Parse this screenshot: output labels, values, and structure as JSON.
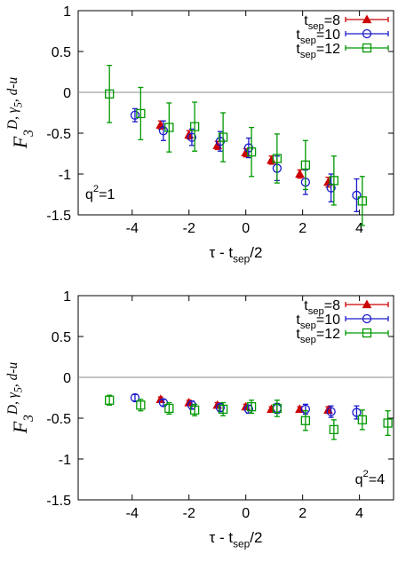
{
  "chart_data": [
    {
      "type": "scatter",
      "xlabel": [
        {
          "text": "τ - t"
        },
        {
          "sub": "sep"
        },
        {
          "text": "/2"
        }
      ],
      "ylabel": [
        {
          "text": "F"
        },
        {
          "sub": "3"
        },
        {
          "sup": "D, γ"
        },
        {
          "supsub": "5"
        },
        {
          "sup": ", d-u"
        }
      ],
      "xlim": [
        -5.9,
        5.2
      ],
      "ylim": [
        -1.5,
        1
      ],
      "xticks": [
        -4,
        -2,
        0,
        2,
        4
      ],
      "yticks": [
        -1.5,
        -1,
        -0.5,
        0,
        0.5,
        1
      ],
      "hline": 0,
      "legend": "upper right",
      "annotation": [
        {
          "text": "q"
        },
        {
          "sup": "2"
        },
        {
          "text": "=1"
        }
      ],
      "annotation_position": "lower left",
      "series": [
        {
          "name": [
            {
              "text": "t"
            },
            {
              "sub": "sep"
            },
            {
              "text": "=8"
            }
          ],
          "color": "#cc0000",
          "marker": "triangle",
          "x": [
            -3.0,
            -2.0,
            -1.0,
            0.0,
            0.9,
            1.9,
            2.9
          ],
          "values": [
            -0.4,
            -0.52,
            -0.65,
            -0.74,
            -0.83,
            -1.0,
            -1.1
          ],
          "errors": [
            0.05,
            0.05,
            0.05,
            0.05,
            0.05,
            0.05,
            0.06
          ]
        },
        {
          "name": [
            {
              "text": "t"
            },
            {
              "sub": "sep"
            },
            {
              "text": "=10"
            }
          ],
          "color": "#1a1acc",
          "marker": "circle",
          "x": [
            -3.9,
            -2.9,
            -1.9,
            -0.9,
            0.1,
            1.1,
            2.1,
            3.0,
            3.9
          ],
          "values": [
            -0.28,
            -0.47,
            -0.55,
            -0.6,
            -0.68,
            -0.93,
            -1.1,
            -1.17,
            -1.26
          ],
          "errors": [
            0.08,
            0.12,
            0.1,
            0.12,
            0.12,
            0.15,
            0.15,
            0.17,
            0.2
          ]
        },
        {
          "name": [
            {
              "text": "t"
            },
            {
              "sub": "sep"
            },
            {
              "text": "=12"
            }
          ],
          "color": "#009900",
          "marker": "square",
          "x": [
            -4.8,
            -3.7,
            -2.7,
            -1.8,
            -0.8,
            0.2,
            1.1,
            2.1,
            3.1,
            4.1
          ],
          "values": [
            -0.02,
            -0.26,
            -0.43,
            -0.42,
            -0.55,
            -0.73,
            -0.81,
            -0.89,
            -1.08,
            -1.33
          ],
          "errors": [
            0.35,
            0.32,
            0.3,
            0.3,
            0.3,
            0.3,
            0.3,
            0.3,
            0.3,
            0.3
          ]
        }
      ]
    },
    {
      "type": "scatter",
      "xlabel": [
        {
          "text": "τ - t"
        },
        {
          "sub": "sep"
        },
        {
          "text": "/2"
        }
      ],
      "ylabel": [
        {
          "text": "F"
        },
        {
          "sub": "3"
        },
        {
          "sup": "D, γ"
        },
        {
          "supsub": "5"
        },
        {
          "sup": ", d-u"
        }
      ],
      "xlim": [
        -5.9,
        5.2
      ],
      "ylim": [
        -1.5,
        1
      ],
      "xticks": [
        -4,
        -2,
        0,
        2,
        4
      ],
      "yticks": [
        -1.5,
        -1,
        -0.5,
        0,
        0.5,
        1
      ],
      "hline": 0,
      "legend": "upper right",
      "annotation": [
        {
          "text": "q"
        },
        {
          "sup": "2"
        },
        {
          "text": "=4"
        }
      ],
      "annotation_position": "lower right",
      "series": [
        {
          "name": [
            {
              "text": "t"
            },
            {
              "sub": "sep"
            },
            {
              "text": "=8"
            }
          ],
          "color": "#cc0000",
          "marker": "triangle",
          "x": [
            -3.0,
            -2.0,
            -1.0,
            0.0,
            0.9,
            1.9,
            2.9
          ],
          "values": [
            -0.27,
            -0.31,
            -0.34,
            -0.36,
            -0.39,
            -0.39,
            -0.4
          ],
          "errors": [
            0.03,
            0.03,
            0.03,
            0.03,
            0.03,
            0.03,
            0.04
          ]
        },
        {
          "name": [
            {
              "text": "t"
            },
            {
              "sub": "sep"
            },
            {
              "text": "=10"
            }
          ],
          "color": "#1a1acc",
          "marker": "circle",
          "x": [
            -3.9,
            -2.9,
            -1.9,
            -0.9,
            0.1,
            1.1,
            2.1,
            3.0,
            3.9
          ],
          "values": [
            -0.25,
            -0.31,
            -0.34,
            -0.37,
            -0.39,
            -0.38,
            -0.39,
            -0.42,
            -0.43
          ],
          "errors": [
            0.04,
            0.04,
            0.05,
            0.05,
            0.05,
            0.06,
            0.06,
            0.07,
            0.08
          ]
        },
        {
          "name": [
            {
              "text": "t"
            },
            {
              "sub": "sep"
            },
            {
              "text": "=12"
            }
          ],
          "color": "#009900",
          "marker": "square",
          "x": [
            -4.8,
            -3.7,
            -2.7,
            -1.8,
            -0.8,
            0.2,
            1.1,
            2.1,
            3.1,
            4.1,
            5.0
          ],
          "values": [
            -0.28,
            -0.34,
            -0.38,
            -0.4,
            -0.39,
            -0.36,
            -0.38,
            -0.53,
            -0.64,
            -0.52,
            -0.56
          ],
          "errors": [
            0.06,
            0.07,
            0.07,
            0.07,
            0.08,
            0.08,
            0.1,
            0.12,
            0.12,
            0.12,
            0.15
          ]
        }
      ]
    }
  ]
}
